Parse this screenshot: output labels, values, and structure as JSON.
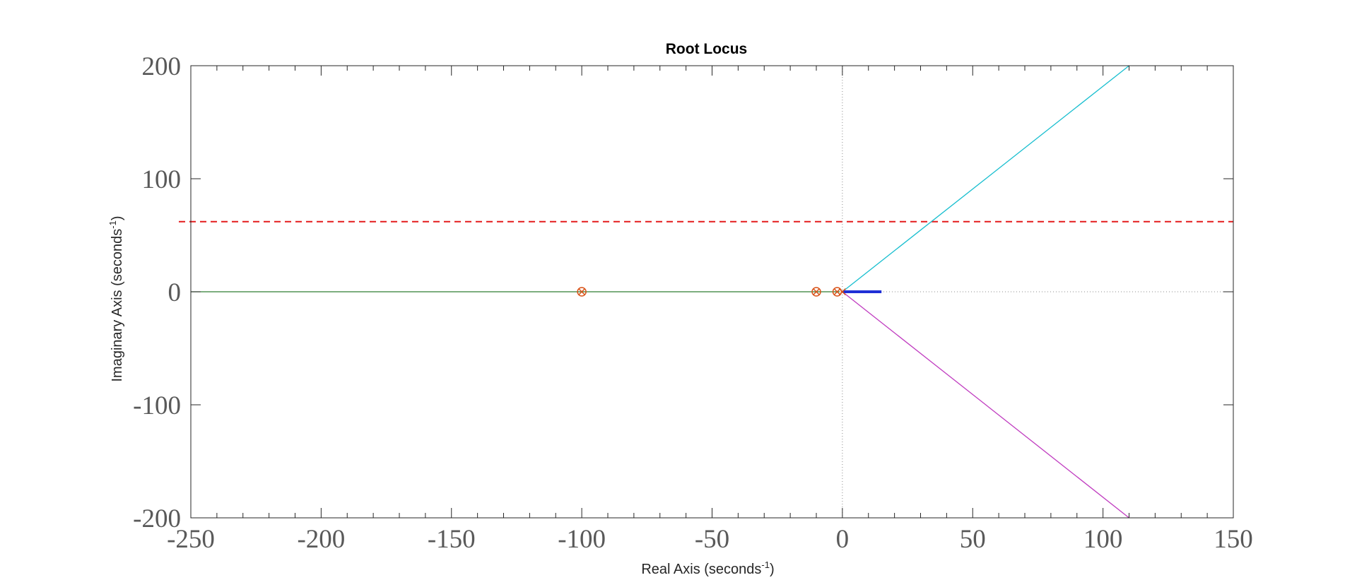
{
  "chart_data": {
    "type": "line",
    "title": "Root Locus",
    "xlabel": {
      "text": "Real Axis (seconds",
      "sup": "-1",
      "close": ")"
    },
    "ylabel": {
      "text": "Imaginary Axis (seconds",
      "sup": "-1",
      "close": ")"
    },
    "xlim": [
      -250,
      150
    ],
    "ylim": [
      -200,
      200
    ],
    "xticks": [
      -250,
      -200,
      -150,
      -100,
      -50,
      0,
      50,
      100,
      150
    ],
    "yticks": [
      -200,
      -100,
      0,
      100,
      200
    ],
    "grid": false,
    "series": [
      {
        "color": "#2e7d32",
        "points": [
          [
            -250,
            0
          ],
          [
            -1,
            0
          ]
        ]
      },
      {
        "color": "#17becf",
        "points": [
          [
            0,
            0
          ],
          [
            110,
            200
          ]
        ]
      },
      {
        "color": "#c03cc0",
        "points": [
          [
            0,
            0
          ],
          [
            110,
            -200
          ]
        ]
      },
      {
        "color": "#1f2fd6",
        "points": [
          [
            0,
            0
          ],
          [
            15,
            0
          ]
        ],
        "width": 4
      }
    ],
    "reference_lines": [
      {
        "orientation": "horizontal",
        "value": 62,
        "color": "#e41a1c",
        "style": "dashed"
      },
      {
        "orientation": "horizontal",
        "value": 0,
        "color": "#8c8c8c",
        "style": "dotted"
      },
      {
        "orientation": "vertical",
        "value": 0,
        "color": "#8c8c8c",
        "style": "dotted"
      }
    ],
    "zeros": [
      {
        "x": -100,
        "y": 0
      },
      {
        "x": -10,
        "y": 0
      },
      {
        "x": -2,
        "y": 0
      }
    ],
    "poles": [
      {
        "x": -100,
        "y": 0
      },
      {
        "x": -10,
        "y": 0
      },
      {
        "x": -2,
        "y": 0
      },
      {
        "x": 0,
        "y": 0
      }
    ],
    "marker_color": "#d95319"
  }
}
